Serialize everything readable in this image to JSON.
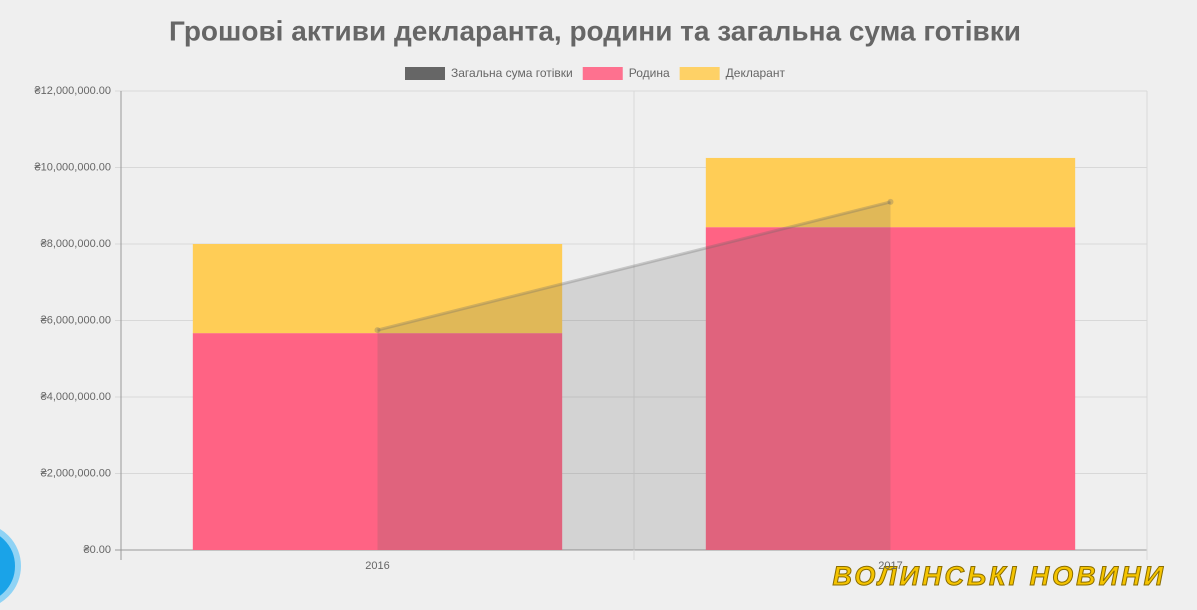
{
  "chart_data": {
    "type": "bar",
    "stacked": true,
    "title": "Грошові активи декларанта, родини та загальна сума готівки",
    "categories": [
      "2016",
      "2017"
    ],
    "series": [
      {
        "name": "Загальна сума готівки",
        "type": "line",
        "color": "#666666",
        "values": [
          5750000,
          9100000
        ]
      },
      {
        "name": "Родина",
        "type": "bar",
        "color": "#ff6384",
        "values": [
          5670000,
          8440000
        ]
      },
      {
        "name": "Декларант",
        "type": "bar",
        "color": "#ffcd56",
        "values": [
          2330000,
          1810000
        ]
      }
    ],
    "ylim": [
      0,
      12000000
    ],
    "yticks": [
      {
        "value": 0,
        "label": "₴0.00"
      },
      {
        "value": 2000000,
        "label": "₴2,000,000.00"
      },
      {
        "value": 4000000,
        "label": "₴4,000,000.00"
      },
      {
        "value": 6000000,
        "label": "₴6,000,000.00"
      },
      {
        "value": 8000000,
        "label": "₴8,000,000.00"
      },
      {
        "value": 10000000,
        "label": "₴10,000,000.00"
      },
      {
        "value": 12000000,
        "label": "₴12,000,000.00"
      }
    ],
    "grid": true,
    "legend": "top",
    "watermark": "ВОЛИНСЬКІ НОВИНИ"
  }
}
